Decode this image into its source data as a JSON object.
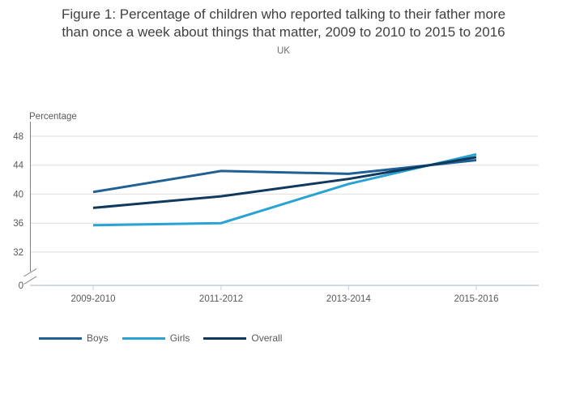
{
  "chart_data": {
    "type": "line",
    "title": "Figure 1: Percentage of children who reported talking to their father more than once a week about things that matter, 2009 to 2010 to 2015 to 2016",
    "title_lines": [
      "Figure 1: Percentage of children who reported talking to their father more",
      "than once a week about things that matter, 2009 to 2010 to 2015 to 2016"
    ],
    "subtitle": "UK",
    "ylabel": "Percentage",
    "xlabel": "",
    "categories": [
      "2009-2010",
      "2011-2012",
      "2013-2014",
      "2015-2016"
    ],
    "series": [
      {
        "name": "Boys",
        "color": "#206095",
        "values": [
          40.3,
          43.2,
          42.8,
          44.7
        ]
      },
      {
        "name": "Girls",
        "color": "#29a3d4",
        "values": [
          35.7,
          36.0,
          41.4,
          45.5
        ]
      },
      {
        "name": "Overall",
        "color": "#0f3a5d",
        "values": [
          38.1,
          39.7,
          42.1,
          45.1
        ]
      }
    ],
    "y_ticks": [
      48,
      44,
      40,
      36,
      32,
      0
    ],
    "y_axis_break": true,
    "y_display_range": [
      32,
      48
    ],
    "grid": "horizontal",
    "legend_position": "bottom-left"
  }
}
